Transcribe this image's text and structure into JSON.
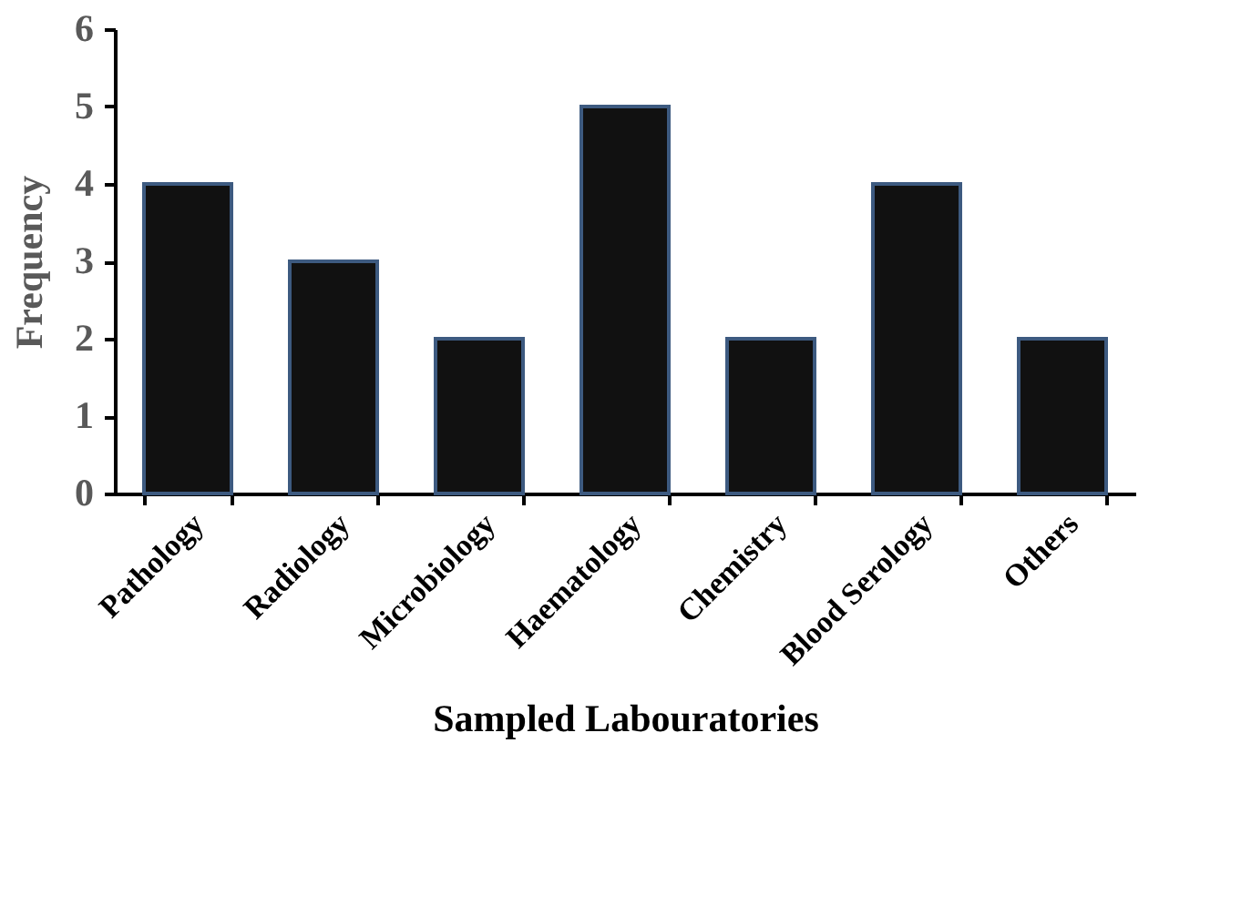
{
  "chart_data": {
    "type": "bar",
    "xlabel": "Sampled Labouratories",
    "ylabel": "Frequency",
    "categories": [
      "Pathology",
      "Radiology",
      "Microbiology",
      "Haematology",
      "Chemistry",
      "Blood Serology",
      "Others"
    ],
    "values": [
      4,
      3,
      2,
      5,
      2,
      4,
      2
    ],
    "color": "#111111",
    "ylim": [
      0,
      6
    ],
    "yticks": [
      0,
      1,
      2,
      3,
      4,
      5,
      6
    ],
    "grid": false
  }
}
